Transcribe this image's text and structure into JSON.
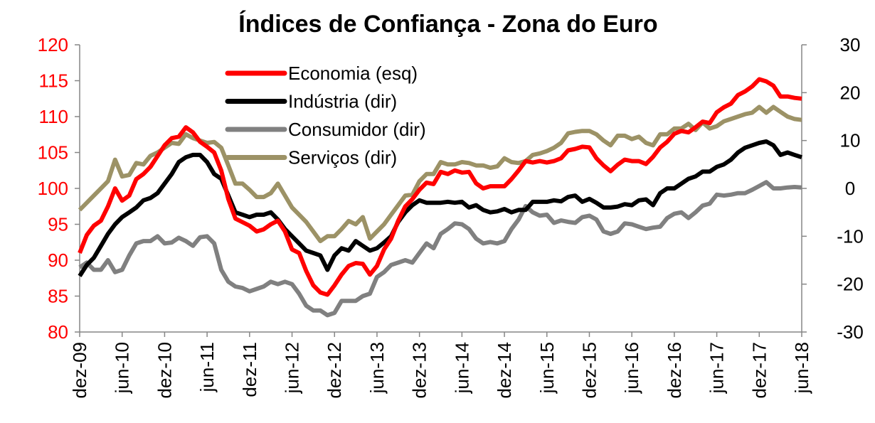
{
  "chart_data": {
    "type": "line",
    "title": "Índices de Confiança - Zona do Euro",
    "categories": [
      "dez-09",
      null,
      null,
      null,
      null,
      null,
      "jun-10",
      null,
      null,
      null,
      null,
      null,
      "dez-10",
      null,
      null,
      null,
      null,
      null,
      "jun-11",
      null,
      null,
      null,
      null,
      null,
      "dez-11",
      null,
      null,
      null,
      null,
      null,
      "jun-12",
      null,
      null,
      null,
      null,
      null,
      "dez-12",
      null,
      null,
      null,
      null,
      null,
      "jun-13",
      null,
      null,
      null,
      null,
      null,
      "dez-13",
      null,
      null,
      null,
      null,
      null,
      "jun-14",
      null,
      null,
      null,
      null,
      null,
      "dez-14",
      null,
      null,
      null,
      null,
      null,
      "jun-15",
      null,
      null,
      null,
      null,
      null,
      "dez-15",
      null,
      null,
      null,
      null,
      null,
      "jun-16",
      null,
      null,
      null,
      null,
      null,
      "dez-16",
      null,
      null,
      null,
      null,
      null,
      "jun-17",
      null,
      null,
      null,
      null,
      null,
      "dez-17",
      null,
      null,
      null,
      null,
      null,
      "jun-18"
    ],
    "ylim": [
      80,
      120
    ],
    "yticks": [
      80,
      85,
      90,
      95,
      100,
      105,
      110,
      115,
      120
    ],
    "y2lim": [
      -30,
      30
    ],
    "y2ticks": [
      -30,
      -20,
      -10,
      0,
      10,
      20,
      30
    ],
    "legend": "upper-left",
    "series": [
      {
        "name": "Economia (esq)",
        "color": "#ff0000",
        "values": [
          91,
          93.5,
          94.8,
          95.5,
          97.5,
          100,
          98.3,
          99,
          101.3,
          102,
          103,
          104.5,
          106,
          107,
          107.2,
          108.5,
          107.8,
          106.5,
          105.8,
          105,
          102.5,
          98.5,
          95.8,
          95.3,
          94.8,
          94,
          94.3,
          95,
          95.5,
          94,
          91.5,
          91,
          88.5,
          86.5,
          85.5,
          85.2,
          86.5,
          88,
          89.2,
          89.6,
          89.5,
          88,
          89.2,
          91.5,
          93,
          95.5,
          97.5,
          98.5,
          99.8,
          100.8,
          100.6,
          102.3,
          102,
          102.5,
          102.2,
          102.3,
          100.7,
          100,
          100.3,
          100.3,
          100.3,
          101.3,
          102.5,
          103.8,
          103.6,
          103.8,
          103.6,
          103.8,
          104.2,
          105.3,
          105.5,
          105.8,
          105.7,
          104.2,
          103.2,
          102.4,
          103.3,
          104,
          103.8,
          103.8,
          103.4,
          104.4,
          105.7,
          106.5,
          107.6,
          108,
          107.8,
          108.5,
          109.3,
          109.1,
          110.6,
          111.3,
          111.8,
          113,
          113.5,
          114.2,
          115.2,
          114.9,
          114.3,
          112.8,
          112.8,
          112.6,
          112.5
        ]
      },
      {
        "name": "Indústria (dir)",
        "color": "#000000",
        "axis": "y2",
        "values": [
          -18.3,
          -16,
          -14.5,
          -12,
          -9.5,
          -7.5,
          -6,
          -5,
          -4,
          -2.5,
          -2,
          -1,
          1,
          3,
          5.5,
          6.5,
          7,
          7,
          5.5,
          3,
          2,
          -1.5,
          -5,
          -5.5,
          -6,
          -5.5,
          -5.5,
          -5,
          -6.5,
          -8.5,
          -10,
          -11.5,
          -13,
          -13.5,
          -14,
          -17,
          -14,
          -12.5,
          -13,
          -11,
          -12,
          -13,
          -12.5,
          -11.3,
          -10,
          -7,
          -5,
          -3.5,
          -2.5,
          -3,
          -3,
          -3,
          -2.8,
          -3,
          -2.8,
          -4,
          -3.5,
          -4.5,
          -5,
          -4.8,
          -4.3,
          -5,
          -4.5,
          -4.5,
          -2.8,
          -2.8,
          -2.8,
          -2.5,
          -2.7,
          -1.8,
          -1.5,
          -2.8,
          -2.2,
          -3,
          -4,
          -4,
          -3.8,
          -3.3,
          -3.5,
          -2.5,
          -2.3,
          -3.5,
          -1,
          0,
          0,
          1,
          2,
          2.5,
          3.5,
          3.5,
          4.5,
          5,
          6,
          7.5,
          8.5,
          9,
          9.5,
          9.8,
          9,
          7,
          7.5,
          7,
          6.5
        ]
      },
      {
        "name": "Consumidor (dir)",
        "color": "#808080",
        "axis": "y2",
        "values": [
          -16.5,
          -15.5,
          -17,
          -17,
          -15,
          -17.5,
          -17,
          -14,
          -11.5,
          -11,
          -11,
          -10,
          -11.5,
          -11.3,
          -10.3,
          -11,
          -12,
          -10.2,
          -10,
          -11.5,
          -17,
          -19.5,
          -20.5,
          -20.8,
          -21.5,
          -21,
          -20.5,
          -19.5,
          -20,
          -19.5,
          -20,
          -22,
          -24.5,
          -25.5,
          -25.5,
          -26.5,
          -26,
          -23.5,
          -23.5,
          -23.5,
          -22.5,
          -22,
          -18.5,
          -17.5,
          -16,
          -15.5,
          -15,
          -15.5,
          -13.5,
          -11.5,
          -12.5,
          -9.5,
          -8.5,
          -7.3,
          -7.5,
          -8.5,
          -10.5,
          -11.5,
          -11.2,
          -11.5,
          -11,
          -8.5,
          -6.5,
          -3.7,
          -5,
          -5.7,
          -5.5,
          -7.2,
          -6.7,
          -7,
          -7.2,
          -6,
          -5.7,
          -6.5,
          -9,
          -9.5,
          -9,
          -7.3,
          -7.5,
          -8,
          -8.5,
          -8.2,
          -8,
          -6.2,
          -5.3,
          -5,
          -6.2,
          -5,
          -3.6,
          -3.2,
          -1.3,
          -1.5,
          -1.3,
          -1,
          -1,
          -0.3,
          0.5,
          1.3,
          0,
          0,
          0.2,
          0.3,
          0.2
        ]
      },
      {
        "name": "Serviços (dir)",
        "color": "#9c9266",
        "axis": "y2",
        "values": [
          -4.5,
          -3,
          -1.5,
          0,
          1.5,
          6,
          2.5,
          2.8,
          5.3,
          5,
          6.8,
          7.5,
          8.5,
          9.5,
          9.3,
          11.3,
          10.5,
          10,
          9.5,
          9.7,
          8.5,
          4.8,
          1,
          1,
          -0.3,
          -1.8,
          -1.8,
          -1,
          1,
          -1.5,
          -4,
          -5.5,
          -7,
          -9,
          -11,
          -10,
          -10,
          -8.5,
          -6.8,
          -7.5,
          -6,
          -10.5,
          -9,
          -7.5,
          -5.5,
          -3.5,
          -1.5,
          -1.3,
          1.5,
          3,
          3,
          5.5,
          5,
          5,
          5.5,
          5.3,
          4.8,
          4.8,
          4.3,
          4.6,
          6.3,
          5.5,
          5.3,
          5.7,
          7,
          7.3,
          7.8,
          8.5,
          9.5,
          11.5,
          11.8,
          12,
          12,
          11.3,
          10,
          9,
          11,
          11,
          10.3,
          10.8,
          9.5,
          9,
          11.3,
          11.3,
          12.5,
          12.5,
          13.5,
          12.2,
          13.8,
          12.5,
          13,
          14,
          14.5,
          15,
          15.5,
          15.8,
          17,
          15.8,
          17,
          16,
          15,
          14.5,
          14.3
        ]
      }
    ]
  }
}
